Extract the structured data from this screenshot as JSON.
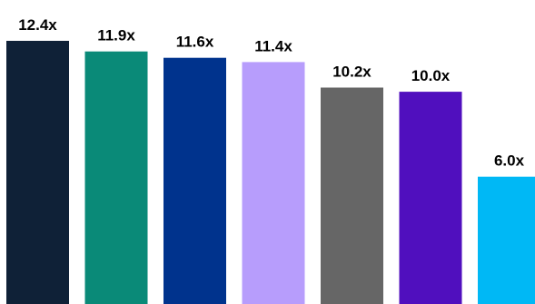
{
  "chart_data": {
    "type": "bar",
    "title": "",
    "xlabel": "",
    "ylabel": "",
    "ylim": [
      0,
      12.4
    ],
    "grid": false,
    "legend": "none",
    "categories": [],
    "values": [
      12.4,
      11.9,
      11.6,
      11.4,
      10.2,
      10.0,
      6.0
    ],
    "labels": [
      "12.4x",
      "11.9x",
      "11.6x",
      "11.4x",
      "10.2x",
      "10.0x",
      "6.0x"
    ],
    "colors": [
      "#0f2137",
      "#0a8a78",
      "#00338d",
      "#b79dfc",
      "#666666",
      "#500fbe",
      "#00b8f5"
    ]
  }
}
